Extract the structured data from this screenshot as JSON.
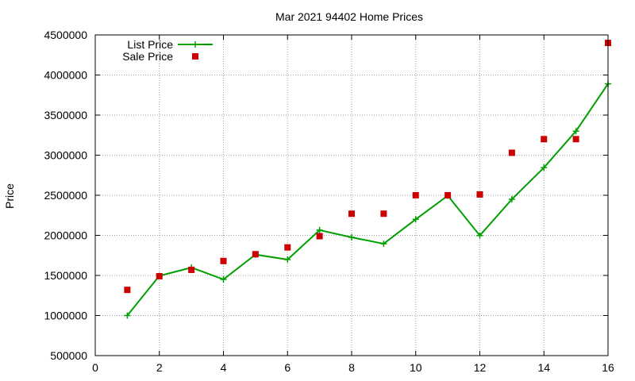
{
  "chart_data": {
    "type": "line",
    "title": "Mar 2021 94402 Home Prices",
    "xlabel": "",
    "ylabel": "Price",
    "xlim": [
      0,
      16
    ],
    "ylim": [
      500000,
      4500000
    ],
    "x_ticks": [
      0,
      2,
      4,
      6,
      8,
      10,
      12,
      14,
      16
    ],
    "y_ticks": [
      500000,
      1000000,
      1500000,
      2000000,
      2500000,
      3000000,
      3500000,
      4000000,
      4500000
    ],
    "x_tick_labels": [
      "0",
      "2",
      "4",
      "6",
      "8",
      "10",
      "12",
      "14",
      "16"
    ],
    "y_tick_labels": [
      "500000",
      "1000000",
      "1500000",
      "2000000",
      "2500000",
      "3000000",
      "3500000",
      "4000000",
      "4500000"
    ],
    "grid": true,
    "legend_position": "top-left",
    "series": [
      {
        "name": "List Price",
        "style": "line-with-plus-markers",
        "color": "#00a000",
        "x": [
          1,
          2,
          3,
          4,
          5,
          6,
          7,
          8,
          9,
          10,
          11,
          12,
          13,
          14,
          15,
          16
        ],
        "y": [
          1000000,
          1495000,
          1598000,
          1450000,
          1760000,
          1698000,
          2065000,
          1975000,
          1895000,
          2200000,
          2495000,
          1998000,
          2450000,
          2845000,
          3300000,
          3890000
        ]
      },
      {
        "name": "Sale Price",
        "style": "square-markers",
        "color": "#cc0000",
        "x": [
          1,
          2,
          3,
          4,
          5,
          6,
          7,
          8,
          9,
          10,
          11,
          12,
          13,
          14,
          15,
          16
        ],
        "y": [
          1320000,
          1490000,
          1570000,
          1680000,
          1765000,
          1850000,
          1990000,
          2270000,
          2270000,
          2500000,
          2500000,
          2510000,
          3030000,
          3200000,
          3200000,
          4400000
        ]
      }
    ]
  }
}
